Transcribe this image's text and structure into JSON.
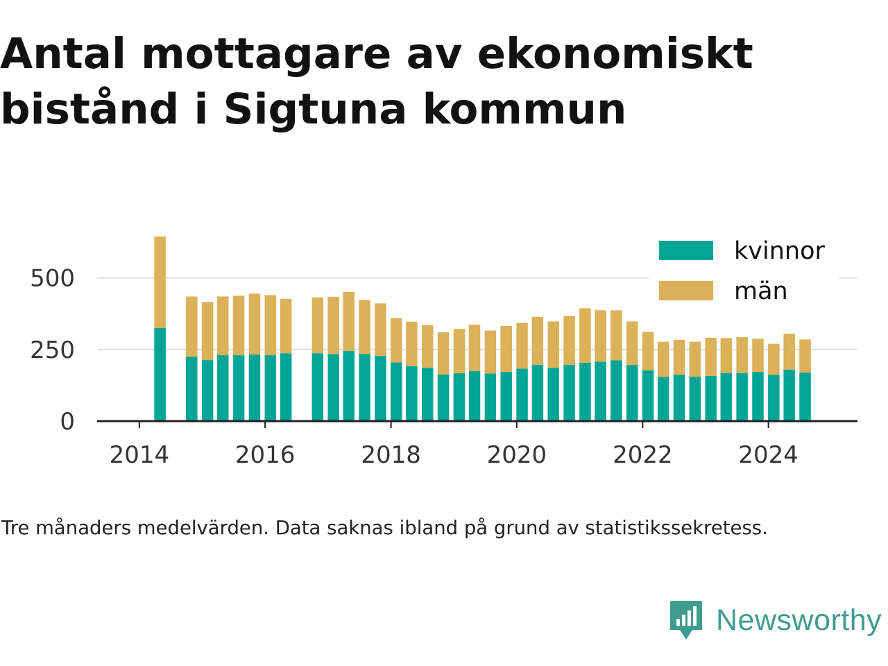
{
  "header": {
    "title_line1": "Antal mottagare av ekonomiskt",
    "title_line2": "bistånd i Sigtuna kommun"
  },
  "footer": {
    "note": "Tre månaders medelvärden. Data saknas ibland på grund av statistikssekretess.",
    "brand": "Newsworthy"
  },
  "colors": {
    "kvinnor": "#00a596",
    "man": "#dbb159",
    "grid": "#dddddd",
    "axis": "#222222",
    "brand": "#3f9d8f"
  },
  "chart_data": {
    "type": "bar",
    "stacked": true,
    "title": "Antal mottagare av ekonomiskt bistånd i Sigtuna kommun",
    "xlim": [
      "2013-05-01",
      "2025-06-01"
    ],
    "ylim": [
      0,
      670
    ],
    "y_ticks": [
      0,
      250,
      500
    ],
    "x_ticks": [
      {
        "date": "2014-01-01",
        "label": "2014"
      },
      {
        "date": "2016-01-01",
        "label": "2016"
      },
      {
        "date": "2018-01-01",
        "label": "2018"
      },
      {
        "date": "2020-01-01",
        "label": "2020"
      },
      {
        "date": "2022-01-01",
        "label": "2022"
      },
      {
        "date": "2024-01-01",
        "label": "2024"
      }
    ],
    "legend": {
      "position": "top-right"
    },
    "grid": "horizontal",
    "x": [
      "2014-05",
      "2014-11",
      "2015-02",
      "2015-05",
      "2015-08",
      "2015-11",
      "2016-02",
      "2016-05",
      "2016-11",
      "2017-02",
      "2017-05",
      "2017-08",
      "2017-11",
      "2018-02",
      "2018-05",
      "2018-08",
      "2018-11",
      "2019-02",
      "2019-05",
      "2019-08",
      "2019-11",
      "2020-02",
      "2020-05",
      "2020-08",
      "2020-11",
      "2021-02",
      "2021-05",
      "2021-08",
      "2021-11",
      "2022-02",
      "2022-05",
      "2022-08",
      "2022-11",
      "2023-02",
      "2023-05",
      "2023-08",
      "2023-11",
      "2024-02",
      "2024-05",
      "2024-08"
    ],
    "series": [
      {
        "name": "kvinnor",
        "values": [
          325,
          225,
          213,
          230,
          230,
          233,
          230,
          237,
          237,
          234,
          245,
          235,
          228,
          205,
          192,
          186,
          163,
          167,
          175,
          166,
          172,
          183,
          197,
          186,
          197,
          204,
          207,
          212,
          196,
          177,
          155,
          162,
          155,
          158,
          168,
          168,
          172,
          162,
          180,
          170
        ]
      },
      {
        "name": "män",
        "values": [
          320,
          210,
          203,
          205,
          208,
          212,
          210,
          190,
          195,
          200,
          206,
          188,
          183,
          155,
          155,
          149,
          147,
          155,
          162,
          150,
          160,
          160,
          167,
          162,
          170,
          190,
          180,
          175,
          152,
          135,
          122,
          122,
          122,
          133,
          122,
          125,
          116,
          108,
          125,
          115
        ]
      }
    ]
  }
}
